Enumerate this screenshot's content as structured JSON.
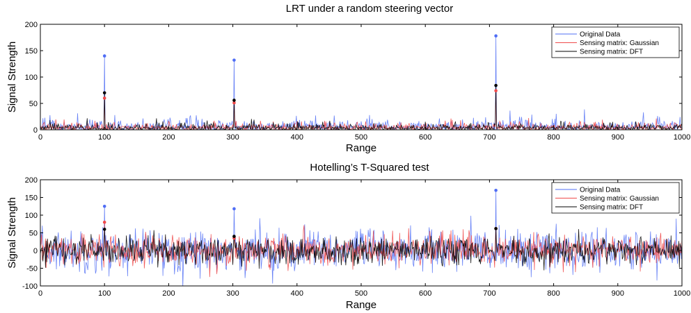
{
  "chart_data": [
    {
      "type": "line",
      "title": "LRT under a random steering vector",
      "xlabel": "Range",
      "ylabel": "Signal Strength",
      "xlim": [
        0,
        1000
      ],
      "ylim": [
        0,
        200
      ],
      "xticks": [
        0,
        100,
        200,
        300,
        400,
        500,
        600,
        700,
        800,
        900,
        1000
      ],
      "yticks": [
        0,
        50,
        100,
        150,
        200
      ],
      "grid": false,
      "legend_position": "top-right",
      "series": [
        {
          "name": "Original Data",
          "color": "#4f6df5",
          "noise_level": 10,
          "peaks": [
            {
              "x": 100,
              "y": 140
            },
            {
              "x": 302,
              "y": 132
            },
            {
              "x": 710,
              "y": 178
            }
          ]
        },
        {
          "name": "Sensing matrix: Gaussian",
          "color": "#f04a4a",
          "noise_level": 7,
          "peaks": [
            {
              "x": 100,
              "y": 60
            },
            {
              "x": 302,
              "y": 51
            },
            {
              "x": 710,
              "y": 74
            }
          ]
        },
        {
          "name": "Sensing matrix: DFT",
          "color": "#000000",
          "noise_level": 6,
          "peaks": [
            {
              "x": 100,
              "y": 70
            },
            {
              "x": 302,
              "y": 56
            },
            {
              "x": 710,
              "y": 84
            }
          ]
        }
      ]
    },
    {
      "type": "line",
      "title": "Hotelling’s T-Squared test",
      "xlabel": "Range",
      "ylabel": "Signal Strength",
      "xlim": [
        0,
        1000
      ],
      "ylim": [
        -100,
        200
      ],
      "xticks": [
        0,
        100,
        200,
        300,
        400,
        500,
        600,
        700,
        800,
        900,
        1000
      ],
      "yticks": [
        -100,
        -50,
        0,
        50,
        100,
        150,
        200
      ],
      "grid": false,
      "legend_position": "top-right",
      "series": [
        {
          "name": "Original Data",
          "color": "#4f6df5",
          "noise_level": 30,
          "peaks": [
            {
              "x": 100,
              "y": 125
            },
            {
              "x": 302,
              "y": 118
            },
            {
              "x": 710,
              "y": 170
            }
          ]
        },
        {
          "name": "Sensing matrix: Gaussian",
          "color": "#f04a4a",
          "noise_level": 22,
          "peaks": [
            {
              "x": 100,
              "y": 80
            },
            {
              "x": 302,
              "y": 35
            },
            {
              "x": 710,
              "y": 62
            }
          ]
        },
        {
          "name": "Sensing matrix: DFT",
          "color": "#000000",
          "noise_level": 20,
          "peaks": [
            {
              "x": 100,
              "y": 60
            },
            {
              "x": 302,
              "y": 40
            },
            {
              "x": 710,
              "y": 62
            }
          ]
        }
      ]
    }
  ]
}
